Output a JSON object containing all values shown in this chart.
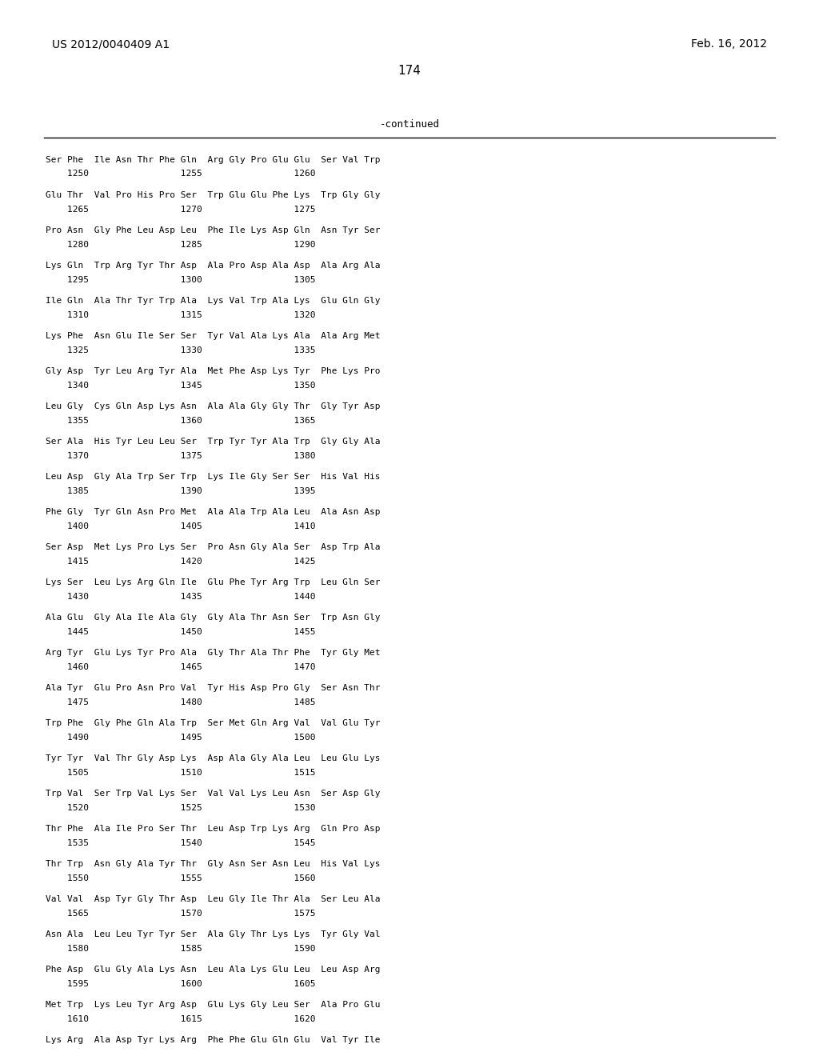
{
  "header_left": "US 2012/0040409 A1",
  "header_right": "Feb. 16, 2012",
  "page_number": "174",
  "continued_label": "-continued",
  "background_color": "#ffffff",
  "text_color": "#000000",
  "lines": [
    "Ser Phe  Ile Asn Thr Phe Gln  Arg Gly Pro Glu Glu  Ser Val Trp",
    "    1250                 1255                 1260",
    "",
    "Glu Thr  Val Pro His Pro Ser  Trp Glu Glu Phe Lys  Trp Gly Gly",
    "    1265                 1270                 1275",
    "",
    "Pro Asn  Gly Phe Leu Asp Leu  Phe Ile Lys Asp Gln  Asn Tyr Ser",
    "    1280                 1285                 1290",
    "",
    "Lys Gln  Trp Arg Tyr Thr Asp  Ala Pro Asp Ala Asp  Ala Arg Ala",
    "    1295                 1300                 1305",
    "",
    "Ile Gln  Ala Thr Tyr Trp Ala  Lys Val Trp Ala Lys  Glu Gln Gly",
    "    1310                 1315                 1320",
    "",
    "Lys Phe  Asn Glu Ile Ser Ser  Tyr Val Ala Lys Ala  Ala Arg Met",
    "    1325                 1330                 1335",
    "",
    "Gly Asp  Tyr Leu Arg Tyr Ala  Met Phe Asp Lys Tyr  Phe Lys Pro",
    "    1340                 1345                 1350",
    "",
    "Leu Gly  Cys Gln Asp Lys Asn  Ala Ala Gly Gly Thr  Gly Tyr Asp",
    "    1355                 1360                 1365",
    "",
    "Ser Ala  His Tyr Leu Leu Ser  Trp Tyr Tyr Ala Trp  Gly Gly Ala",
    "    1370                 1375                 1380",
    "",
    "Leu Asp  Gly Ala Trp Ser Trp  Lys Ile Gly Ser Ser  His Val His",
    "    1385                 1390                 1395",
    "",
    "Phe Gly  Tyr Gln Asn Pro Met  Ala Ala Trp Ala Leu  Ala Asn Asp",
    "    1400                 1405                 1410",
    "",
    "Ser Asp  Met Lys Pro Lys Ser  Pro Asn Gly Ala Ser  Asp Trp Ala",
    "    1415                 1420                 1425",
    "",
    "Lys Ser  Leu Lys Arg Gln Ile  Glu Phe Tyr Arg Trp  Leu Gln Ser",
    "    1430                 1435                 1440",
    "",
    "Ala Glu  Gly Ala Ile Ala Gly  Gly Ala Thr Asn Ser  Trp Asn Gly",
    "    1445                 1450                 1455",
    "",
    "Arg Tyr  Glu Lys Tyr Pro Ala  Gly Thr Ala Thr Phe  Tyr Gly Met",
    "    1460                 1465                 1470",
    "",
    "Ala Tyr  Glu Pro Asn Pro Val  Tyr His Asp Pro Gly  Ser Asn Thr",
    "    1475                 1480                 1485",
    "",
    "Trp Phe  Gly Phe Gln Ala Trp  Ser Met Gln Arg Val  Val Glu Tyr",
    "    1490                 1495                 1500",
    "",
    "Tyr Tyr  Val Thr Gly Asp Lys  Asp Ala Gly Ala Leu  Leu Glu Lys",
    "    1505                 1510                 1515",
    "",
    "Trp Val  Ser Trp Val Lys Ser  Val Val Lys Leu Asn  Ser Asp Gly",
    "    1520                 1525                 1530",
    "",
    "Thr Phe  Ala Ile Pro Ser Thr  Leu Asp Trp Lys Arg  Gln Pro Asp",
    "    1535                 1540                 1545",
    "",
    "Thr Trp  Asn Gly Ala Tyr Thr  Gly Asn Ser Asn Leu  His Val Lys",
    "    1550                 1555                 1560",
    "",
    "Val Val  Asp Tyr Gly Thr Asp  Leu Gly Ile Thr Ala  Ser Leu Ala",
    "    1565                 1570                 1575",
    "",
    "Asn Ala  Leu Leu Tyr Tyr Ser  Ala Gly Thr Lys Lys  Tyr Gly Val",
    "    1580                 1585                 1590",
    "",
    "Phe Asp  Glu Gly Ala Lys Asn  Leu Ala Lys Glu Leu  Leu Asp Arg",
    "    1595                 1600                 1605",
    "",
    "Met Trp  Lys Leu Tyr Arg Asp  Glu Lys Gly Leu Ser  Ala Pro Glu",
    "    1610                 1615                 1620",
    "",
    "Lys Arg  Ala Asp Tyr Lys Arg  Phe Phe Glu Gln Glu  Val Tyr Ile"
  ]
}
